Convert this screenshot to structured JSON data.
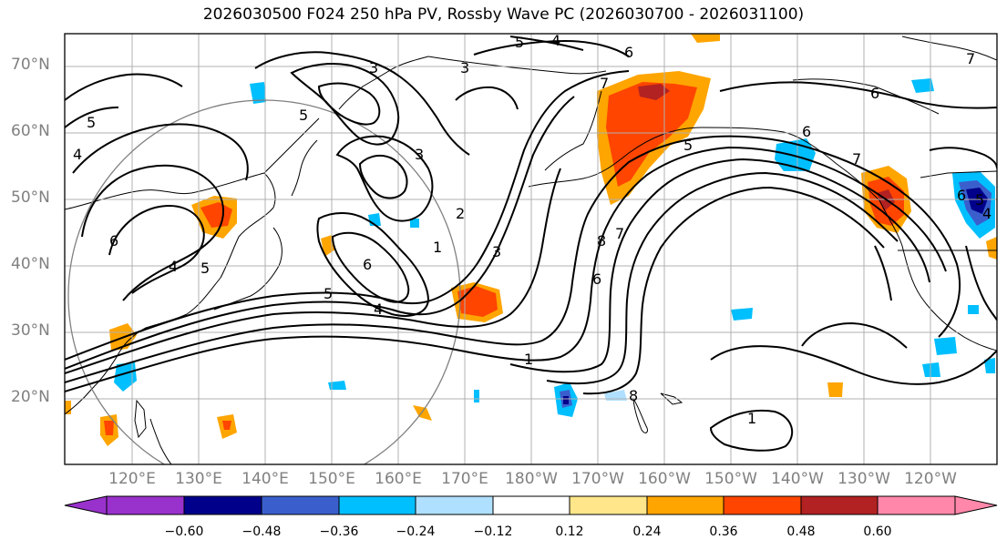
{
  "title": "2026030500 F024 250 hPa PV, Rossby Wave PC (2026030700 - 2026031100)",
  "lat_labels": [
    "70°N",
    "60°N",
    "50°N",
    "40°N",
    "30°N",
    "20°N"
  ],
  "lon_labels": [
    "120°E",
    "130°E",
    "140°E",
    "150°E",
    "160°E",
    "170°E",
    "180°W",
    "170°W",
    "160°W",
    "150°W",
    "140°W",
    "130°W",
    "120°W"
  ],
  "colorbar": {
    "ticks": [
      "−0.60",
      "−0.48",
      "−0.36",
      "−0.24",
      "−0.12",
      "0.12",
      "0.24",
      "0.36",
      "0.48",
      "0.60"
    ],
    "colors": [
      "#9932cc",
      "#00008b",
      "#3a5fcd",
      "#00bfff",
      "#b0e0ff",
      "#ffffff",
      "#ffe68a",
      "#ffa500",
      "#ff4500",
      "#b22222",
      "#ff88aa"
    ]
  },
  "contour_labels": [
    "4",
    "5",
    "6",
    "7",
    "3",
    "5",
    "4",
    "6",
    "5",
    "3",
    "6",
    "7",
    "5",
    "4",
    "3",
    "2",
    "1",
    "6",
    "5",
    "4",
    "3",
    "6",
    "7",
    "8",
    "5",
    "6",
    "7",
    "8",
    "1",
    "1",
    "6",
    "5",
    "4"
  ]
}
